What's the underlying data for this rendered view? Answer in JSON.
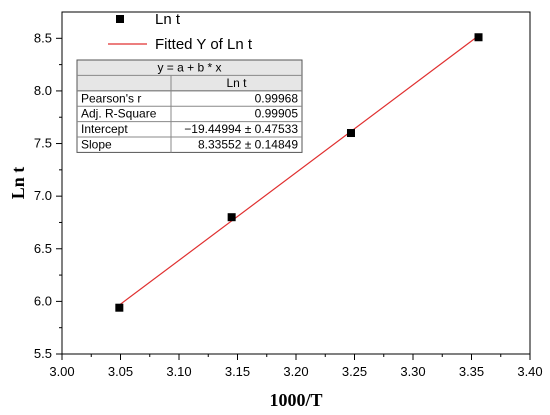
{
  "chart_data": {
    "type": "scatter",
    "xlabel": "1000/T",
    "ylabel": "Ln t",
    "xlim": [
      3.0,
      3.4
    ],
    "ylim": [
      5.5,
      8.75
    ],
    "x_ticks": [
      "3.00",
      "3.05",
      "3.10",
      "3.15",
      "3.20",
      "3.25",
      "3.30",
      "3.35",
      "3.40"
    ],
    "y_ticks": [
      "5.5",
      "6.0",
      "6.5",
      "7.0",
      "7.5",
      "8.0",
      "8.5"
    ],
    "grid": false,
    "legend_position": "top-left",
    "series": [
      {
        "name": "Ln t",
        "marker": "square",
        "color": "#000000",
        "x": [
          3.049,
          3.145,
          3.247,
          3.356
        ],
        "y": [
          5.94,
          6.8,
          7.6,
          8.51
        ]
      },
      {
        "name": "Fitted Y of Ln t",
        "type": "line",
        "color": "#e03030",
        "intercept": -19.44994,
        "slope": 8.33552,
        "x_range": [
          3.049,
          3.356
        ]
      }
    ],
    "stats_table": {
      "equation": "y = a + b * x",
      "column": "Ln t",
      "rows": [
        {
          "label": "Pearson's r",
          "value": "0.99968"
        },
        {
          "label": "Adj. R-Square",
          "value": "0.99905"
        },
        {
          "label": "Intercept",
          "value": "−19.44994 ± 0.47533"
        },
        {
          "label": "Slope",
          "value": "8.33552 ± 0.14849"
        }
      ]
    }
  }
}
